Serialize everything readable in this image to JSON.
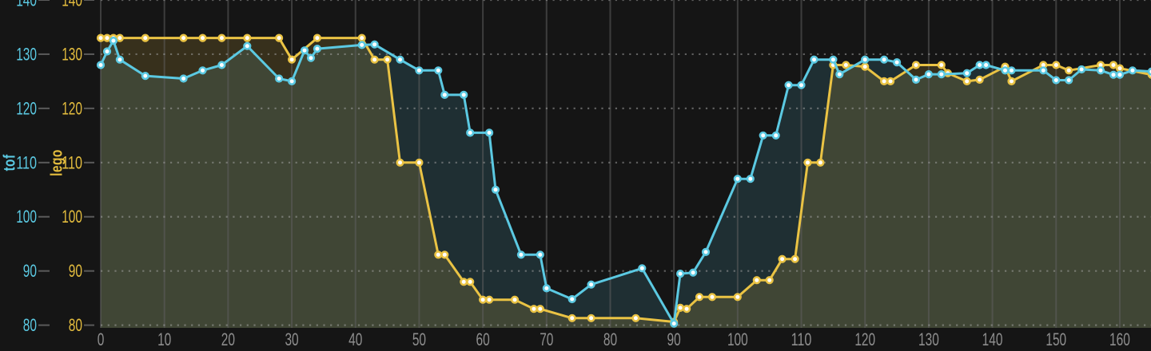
{
  "chart_data": {
    "type": "line",
    "title": "",
    "background": "#151515",
    "x_axis": {
      "range": [
        0,
        164.9
      ],
      "ticks": [
        0,
        10,
        20,
        30,
        40,
        50,
        60,
        70,
        80,
        90,
        100,
        110,
        120,
        130,
        140,
        150,
        160
      ],
      "tick_color": "#8e8e8e",
      "gridline_style": "solid"
    },
    "y_axis": {
      "range": [
        79.5,
        140
      ],
      "ticks": [
        80,
        90,
        100,
        110,
        120,
        130,
        140
      ],
      "gridline_style": "dotted",
      "axes": [
        {
          "title": "tof",
          "tick_color": "#5bc9e2"
        },
        {
          "title": "lego",
          "tick_color": "#e3bc3e"
        }
      ]
    },
    "grid": {
      "vertical": "on",
      "horizontal": "on"
    },
    "series": [
      {
        "name": "tof",
        "color": "#5bc9e2",
        "fill": "rgba(91,201,226,0.15)",
        "marker": "circle-white",
        "points": [
          [
            0,
            128
          ],
          [
            1,
            130.5
          ],
          [
            2,
            132.5
          ],
          [
            3,
            129
          ],
          [
            7,
            126
          ],
          [
            13,
            125.5
          ],
          [
            16,
            127
          ],
          [
            19,
            128
          ],
          [
            23,
            131.5
          ],
          [
            28,
            125.5
          ],
          [
            30,
            125
          ],
          [
            32,
            130.7
          ],
          [
            33,
            129.3
          ],
          [
            34,
            131
          ],
          [
            41,
            131.7
          ],
          [
            43,
            131.8
          ],
          [
            47,
            129
          ],
          [
            50,
            127
          ],
          [
            53,
            127
          ],
          [
            54,
            122.5
          ],
          [
            57,
            122.5
          ],
          [
            58,
            115.5
          ],
          [
            61,
            115.5
          ],
          [
            62,
            105
          ],
          [
            66,
            93
          ],
          [
            69,
            93
          ],
          [
            70,
            86.8
          ],
          [
            74,
            84.8
          ],
          [
            77,
            87.5
          ],
          [
            85,
            90.5
          ],
          [
            90,
            80.3
          ],
          [
            91,
            89.5
          ],
          [
            93,
            89.7
          ],
          [
            95,
            93.5
          ],
          [
            100,
            107
          ],
          [
            102,
            107
          ],
          [
            104,
            115
          ],
          [
            106,
            115
          ],
          [
            108,
            124.3
          ],
          [
            110,
            124.3
          ],
          [
            112,
            129
          ],
          [
            115,
            129
          ],
          [
            116,
            126.3
          ],
          [
            120,
            129
          ],
          [
            123,
            129
          ],
          [
            125,
            128.5
          ],
          [
            128,
            125.3
          ],
          [
            130,
            126.3
          ],
          [
            132,
            126.3
          ],
          [
            136,
            126.5
          ],
          [
            138,
            128
          ],
          [
            139,
            128
          ],
          [
            142,
            127
          ],
          [
            143,
            127
          ],
          [
            148,
            127
          ],
          [
            150,
            125.2
          ],
          [
            152,
            125.2
          ],
          [
            154,
            127.2
          ],
          [
            157,
            127
          ],
          [
            159,
            126.2
          ],
          [
            160,
            126.2
          ],
          [
            162,
            127
          ],
          [
            165,
            126.8
          ]
        ]
      },
      {
        "name": "lego",
        "color": "#eac344",
        "fill": "rgba(234,195,68,0.16)",
        "marker": "circle-white",
        "points": [
          [
            0,
            133
          ],
          [
            1,
            133
          ],
          [
            2,
            133
          ],
          [
            3,
            133
          ],
          [
            7,
            133
          ],
          [
            13,
            133
          ],
          [
            16,
            133
          ],
          [
            19,
            133
          ],
          [
            23,
            133
          ],
          [
            28,
            133
          ],
          [
            30,
            129
          ],
          [
            34,
            133
          ],
          [
            41,
            133
          ],
          [
            43,
            129
          ],
          [
            45,
            129
          ],
          [
            47,
            110
          ],
          [
            50,
            110
          ],
          [
            53,
            93
          ],
          [
            54,
            93
          ],
          [
            57,
            88
          ],
          [
            58,
            88
          ],
          [
            60,
            84.7
          ],
          [
            61,
            84.7
          ],
          [
            65,
            84.7
          ],
          [
            68,
            83
          ],
          [
            69,
            83
          ],
          [
            74,
            81.3
          ],
          [
            77,
            81.3
          ],
          [
            84,
            81.3
          ],
          [
            90,
            80.6
          ],
          [
            91,
            83.2
          ],
          [
            92,
            83
          ],
          [
            94,
            85.2
          ],
          [
            96,
            85.2
          ],
          [
            100,
            85.2
          ],
          [
            103,
            88.3
          ],
          [
            105,
            88.3
          ],
          [
            107,
            92.2
          ],
          [
            109,
            92.2
          ],
          [
            111,
            110
          ],
          [
            113,
            110
          ],
          [
            115,
            128
          ],
          [
            117,
            128
          ],
          [
            120,
            127.7
          ],
          [
            123,
            125
          ],
          [
            124,
            125
          ],
          [
            128,
            128
          ],
          [
            132,
            128
          ],
          [
            133,
            126.5
          ],
          [
            136,
            125
          ],
          [
            138,
            125.3
          ],
          [
            142,
            127.7
          ],
          [
            143,
            125
          ],
          [
            148,
            128
          ],
          [
            150,
            128
          ],
          [
            152,
            127
          ],
          [
            157,
            128
          ],
          [
            159,
            128
          ],
          [
            160,
            127.4
          ],
          [
            165,
            126.2
          ]
        ]
      }
    ],
    "style": {
      "vgrid_color": "#5f5f5f",
      "hgrid_dot_color": "#aaaaaa",
      "axis_dash_color": "#5a5a5a",
      "marker_fill": "#ffffff"
    }
  }
}
